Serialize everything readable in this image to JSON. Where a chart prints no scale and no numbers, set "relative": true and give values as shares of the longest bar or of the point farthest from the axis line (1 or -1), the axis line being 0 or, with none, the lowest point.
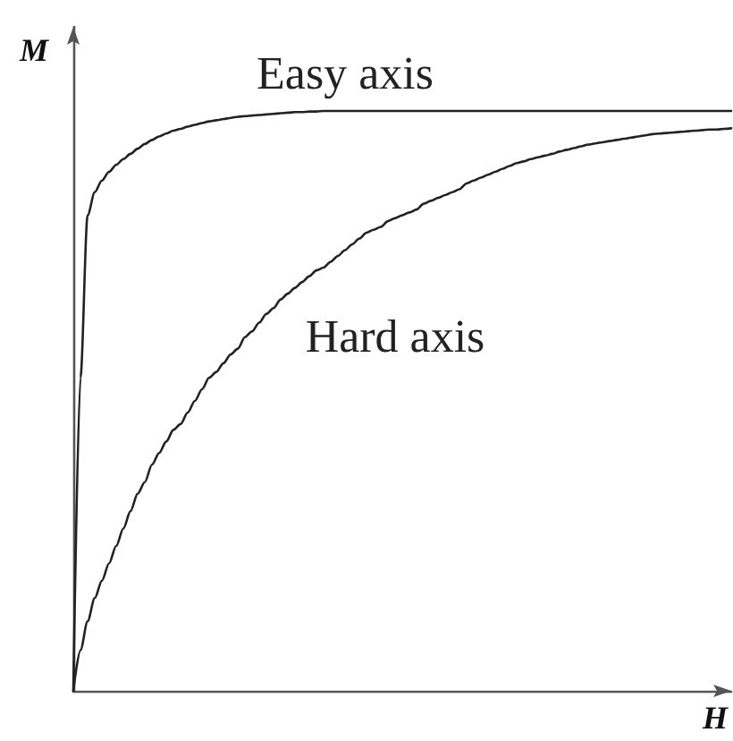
{
  "chart_data": {
    "type": "line",
    "relative": true,
    "xlabel": "H",
    "ylabel": "M",
    "tick_labels": false,
    "marker": "none",
    "line_style": "solid",
    "categories": [
      null,
      null,
      null,
      null,
      null,
      null,
      null,
      null,
      null,
      null,
      null,
      null,
      null,
      null,
      null,
      null,
      null,
      null,
      null,
      null,
      null,
      null,
      null,
      null,
      null,
      null,
      null,
      null,
      null,
      null,
      null,
      null,
      null,
      null,
      null,
      null,
      null,
      null,
      null,
      null,
      null,
      null,
      null,
      null,
      null,
      null,
      null,
      null,
      null,
      null,
      null,
      null,
      null,
      null,
      null,
      null,
      null,
      null,
      null,
      null,
      null,
      null,
      null,
      null,
      null,
      null,
      null,
      null,
      null,
      null,
      null,
      null,
      null,
      null,
      null,
      null,
      null,
      null,
      null,
      null,
      null,
      null,
      null,
      null,
      null,
      null,
      null,
      null,
      null,
      null,
      null,
      null,
      null
    ],
    "series": [
      {
        "name": "Easy axis",
        "color": "#222222",
        "values": [
          0,
          0.54,
          0.82,
          0.86,
          0.88,
          0.895,
          0.907,
          0.917,
          0.926,
          0.935,
          0.943,
          0.95,
          0.956,
          0.961,
          0.966,
          0.969,
          0.973,
          0.976,
          0.979,
          0.982,
          0.984,
          0.986,
          0.988,
          0.99,
          0.991,
          0.992,
          0.993,
          0.994,
          0.995,
          0.996,
          0.997,
          0.998,
          0.998,
          0.999,
          0.999,
          1,
          1,
          1,
          1,
          1,
          1,
          1,
          1,
          1,
          1,
          1,
          1,
          1,
          1,
          1,
          1,
          1,
          1,
          1,
          1,
          1,
          1,
          1,
          1,
          1,
          1,
          1,
          1,
          1,
          1,
          1,
          1,
          1,
          1,
          1,
          1,
          1,
          1,
          1,
          1,
          1,
          1,
          1,
          1,
          1,
          1,
          1,
          1,
          1,
          1,
          1,
          1,
          1,
          1,
          1,
          1,
          1,
          1
        ]
      },
      {
        "name": "Hard axis",
        "color": "#222222",
        "values": [
          0,
          0.07,
          0.12,
          0.16,
          0.19,
          0.22,
          0.25,
          0.28,
          0.31,
          0.34,
          0.36,
          0.39,
          0.41,
          0.43,
          0.45,
          0.46,
          0.48,
          0.5,
          0.52,
          0.54,
          0.55,
          0.565,
          0.58,
          0.59,
          0.61,
          0.62,
          0.635,
          0.65,
          0.66,
          0.675,
          0.685,
          0.695,
          0.705,
          0.715,
          0.725,
          0.73,
          0.74,
          0.75,
          0.76,
          0.77,
          0.78,
          0.79,
          0.795,
          0.8,
          0.81,
          0.815,
          0.82,
          0.825,
          0.83,
          0.84,
          0.845,
          0.85,
          0.855,
          0.86,
          0.865,
          0.875,
          0.88,
          0.885,
          0.89,
          0.895,
          0.9,
          0.905,
          0.91,
          0.913,
          0.917,
          0.92,
          0.923,
          0.926,
          0.93,
          0.933,
          0.936,
          0.939,
          0.942,
          0.944,
          0.946,
          0.948,
          0.95,
          0.952,
          0.954,
          0.956,
          0.958,
          0.96,
          0.961,
          0.962,
          0.963,
          0.964,
          0.965,
          0.966,
          0.967,
          0.968,
          0.968,
          0.969,
          0.97
        ]
      }
    ]
  }
}
